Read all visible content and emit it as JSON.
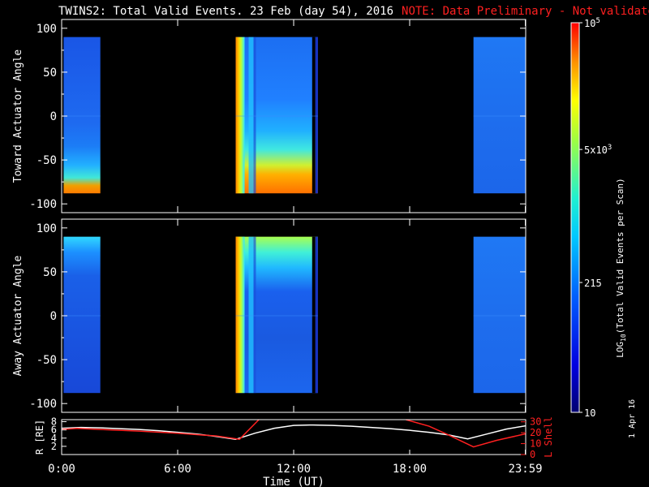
{
  "title": {
    "main": "TWINS2: Total Valid Events. 23 Feb (day  54), 2016",
    "note": "NOTE: Data Preliminary - Not validated"
  },
  "footer_date": "1 Apr 16",
  "colors": {
    "background": "#000000",
    "axes": "#ffffff",
    "note": "#ff2020",
    "r_line": "#ffffff",
    "lshell_line": "#ff2020"
  },
  "chart_data": [
    {
      "type": "heatmap",
      "panel": "toward",
      "ylabel": "Toward Actuator Angle",
      "yticks": [
        -100,
        -50,
        0,
        50,
        100
      ],
      "ylim": [
        -110,
        110
      ],
      "data_angle_range": [
        -88,
        90
      ],
      "xlim": [
        0,
        24
      ],
      "x_unit": "hours UT",
      "data_intervals": [
        {
          "start": 0.1,
          "end": 2.0,
          "profile": "quiet_low_edge_hot"
        },
        {
          "start": 9.0,
          "end": 13.25,
          "profile": "active_low_edge_hot"
        },
        {
          "start": 21.3,
          "end": 24.0,
          "profile": "quiet"
        }
      ]
    },
    {
      "type": "heatmap",
      "panel": "away",
      "ylabel": "Away Actuator Angle",
      "yticks": [
        -100,
        -50,
        0,
        50,
        100
      ],
      "ylim": [
        -110,
        110
      ],
      "data_angle_range": [
        -88,
        90
      ],
      "xlim": [
        0,
        24
      ],
      "x_unit": "hours UT",
      "data_intervals": [
        {
          "start": 0.1,
          "end": 2.0,
          "profile": "quiet_high_edge_warm"
        },
        {
          "start": 9.0,
          "end": 13.25,
          "profile": "active_high_edge_warm"
        },
        {
          "start": 21.3,
          "end": 24.0,
          "profile": "quiet"
        }
      ]
    },
    {
      "type": "line",
      "panel": "orbit",
      "xticks": [
        "0:00",
        "6:00",
        "12:00",
        "18:00",
        "23:59"
      ],
      "xtick_hours": [
        0,
        6,
        12,
        18,
        23.98
      ],
      "xlabel": "Time (UT)",
      "ylabel_left": "R [RE]",
      "yticks_left": [
        2,
        4,
        6,
        8
      ],
      "ylim_left": [
        0,
        8.5
      ],
      "ylabel_right": "L Shell",
      "yticks_right": [
        0,
        10,
        20,
        30
      ],
      "ylim_right": [
        0,
        32
      ],
      "series": [
        {
          "name": "R [RE]",
          "axis": "left",
          "x": [
            0,
            1,
            2,
            3,
            4,
            5,
            6,
            7,
            8,
            9,
            10,
            11,
            12,
            13,
            14,
            15,
            16,
            17,
            18,
            19,
            20,
            21,
            22,
            23,
            24
          ],
          "y": [
            6.4,
            6.6,
            6.5,
            6.3,
            6.1,
            5.8,
            5.4,
            5.0,
            4.4,
            3.7,
            5.2,
            6.4,
            7.1,
            7.2,
            7.1,
            6.9,
            6.6,
            6.3,
            5.9,
            5.4,
            4.8,
            3.8,
            5.0,
            6.2,
            7.0
          ]
        },
        {
          "name": "L Shell",
          "axis": "right",
          "segments": [
            {
              "x": [
                0,
                0.8,
                2,
                4,
                6,
                8,
                9.2,
                10.2
              ],
              "y": [
                23,
                24,
                23,
                21.5,
                19.5,
                17,
                14,
                32
              ]
            },
            {
              "x": [
                17.8,
                19,
                20,
                21.3,
                22.5,
                24
              ],
              "y": [
                32,
                26,
                18,
                7,
                13,
                19
              ]
            }
          ]
        }
      ]
    },
    {
      "type": "colorbar",
      "label": "LOG10(Total Valid Events per Scan)",
      "tick_labels": [
        "10",
        "215",
        "5x10^3",
        "10^5"
      ],
      "tick_values": [
        1,
        2.333,
        3.699,
        5
      ],
      "range": [
        1,
        5
      ],
      "colormap": "rainbow (blue to red)"
    }
  ]
}
